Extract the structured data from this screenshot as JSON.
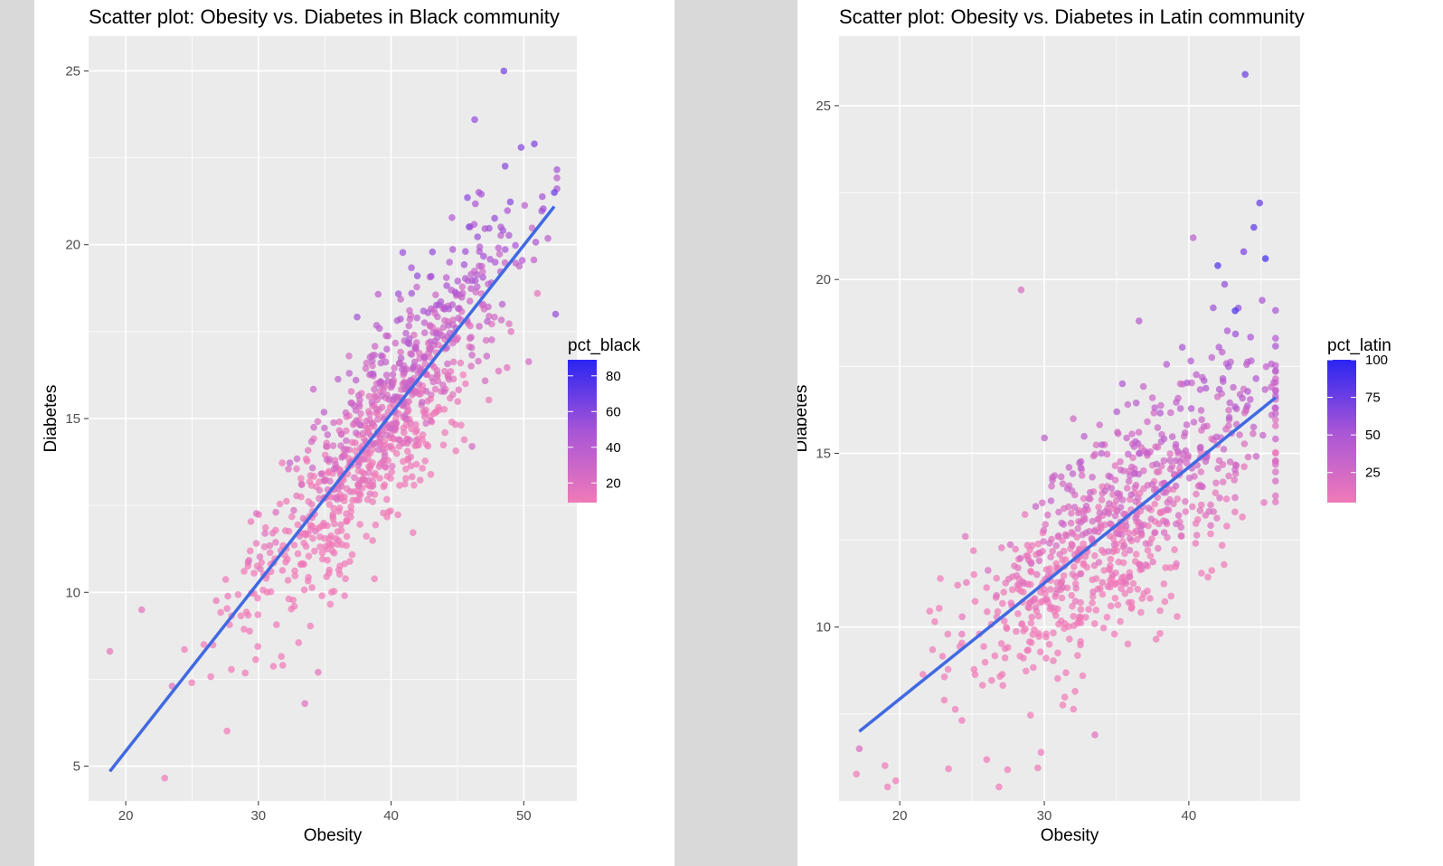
{
  "chart_data": [
    {
      "type": "scatter",
      "title": "Scatter plot: Obesity vs. Diabetes in Black community",
      "xlabel": "Obesity",
      "ylabel": "Diabetes",
      "xlim": [
        17.2,
        54.0
      ],
      "ylim": [
        4.0,
        26.0
      ],
      "xticks": [
        20,
        30,
        40,
        50
      ],
      "yticks": [
        5,
        10,
        15,
        20,
        25
      ],
      "grid": true,
      "legend": {
        "title": "pct_black",
        "range": [
          9,
          89
        ],
        "ticks": [
          20,
          40,
          60,
          80
        ],
        "colors": [
          "#f07ab8",
          "#a855d6",
          "#2a25f2"
        ],
        "placement": "right"
      },
      "trend": {
        "x": [
          18.8,
          52.3
        ],
        "y": [
          4.85,
          21.1
        ],
        "color": "#4169e1"
      },
      "point_count": 900,
      "point_model": {
        "slope": 0.49,
        "noise": 1.35,
        "x_mean": 39.0,
        "x_sd": 4.9,
        "x_range": [
          18.5,
          52.5
        ],
        "seed": 11
      },
      "highlight_points": [
        {
          "x": 48.5,
          "y": 25.0,
          "pct": 65
        },
        {
          "x": 46.3,
          "y": 23.6,
          "pct": 55
        },
        {
          "x": 49.8,
          "y": 22.8,
          "pct": 60
        },
        {
          "x": 50.8,
          "y": 22.9,
          "pct": 62
        },
        {
          "x": 52.3,
          "y": 21.5,
          "pct": 70
        },
        {
          "x": 52.4,
          "y": 18.0,
          "pct": 55
        },
        {
          "x": 18.8,
          "y": 8.3,
          "pct": 15
        },
        {
          "x": 33.5,
          "y": 6.8,
          "pct": 18
        },
        {
          "x": 34.5,
          "y": 7.7,
          "pct": 15
        },
        {
          "x": 23.5,
          "y": 7.3,
          "pct": 20
        },
        {
          "x": 21.2,
          "y": 9.5,
          "pct": 15
        },
        {
          "x": 46.1,
          "y": 14.2,
          "pct": 25
        }
      ]
    },
    {
      "type": "scatter",
      "title": "Scatter plot: Obesity vs. Diabetes in Latin community",
      "xlabel": "Obesity",
      "ylabel": "Diabetes",
      "xlim": [
        15.8,
        47.7
      ],
      "ylim": [
        5.0,
        27.0
      ],
      "xticks": [
        20,
        30,
        40
      ],
      "yticks": [
        10,
        15,
        20,
        25
      ],
      "grid": true,
      "legend": {
        "title": "pct_latin",
        "range": [
          5,
          100
        ],
        "ticks": [
          25,
          50,
          75,
          100
        ],
        "colors": [
          "#f07ab8",
          "#a855d6",
          "#2a25f2"
        ],
        "placement": "right"
      },
      "trend": {
        "x": [
          17.2,
          46.0
        ],
        "y": [
          7.0,
          16.6
        ],
        "color": "#4169e1"
      },
      "point_count": 820,
      "point_model": {
        "slope": 0.333,
        "noise": 1.55,
        "x_mean": 35.0,
        "x_sd": 5.6,
        "x_range": [
          17.0,
          46.0
        ],
        "seed": 29
      },
      "highlight_points": [
        {
          "x": 43.9,
          "y": 25.9,
          "pct": 75
        },
        {
          "x": 44.9,
          "y": 22.2,
          "pct": 78
        },
        {
          "x": 44.5,
          "y": 21.5,
          "pct": 80
        },
        {
          "x": 45.3,
          "y": 20.6,
          "pct": 90
        },
        {
          "x": 43.8,
          "y": 20.8,
          "pct": 70
        },
        {
          "x": 42.0,
          "y": 20.4,
          "pct": 85
        },
        {
          "x": 43.2,
          "y": 19.1,
          "pct": 88
        },
        {
          "x": 40.3,
          "y": 21.2,
          "pct": 40
        },
        {
          "x": 28.4,
          "y": 19.7,
          "pct": 20
        },
        {
          "x": 17.2,
          "y": 6.5,
          "pct": 20
        },
        {
          "x": 46.0,
          "y": 14.2,
          "pct": 25
        },
        {
          "x": 33.5,
          "y": 6.9,
          "pct": 15
        }
      ]
    }
  ]
}
